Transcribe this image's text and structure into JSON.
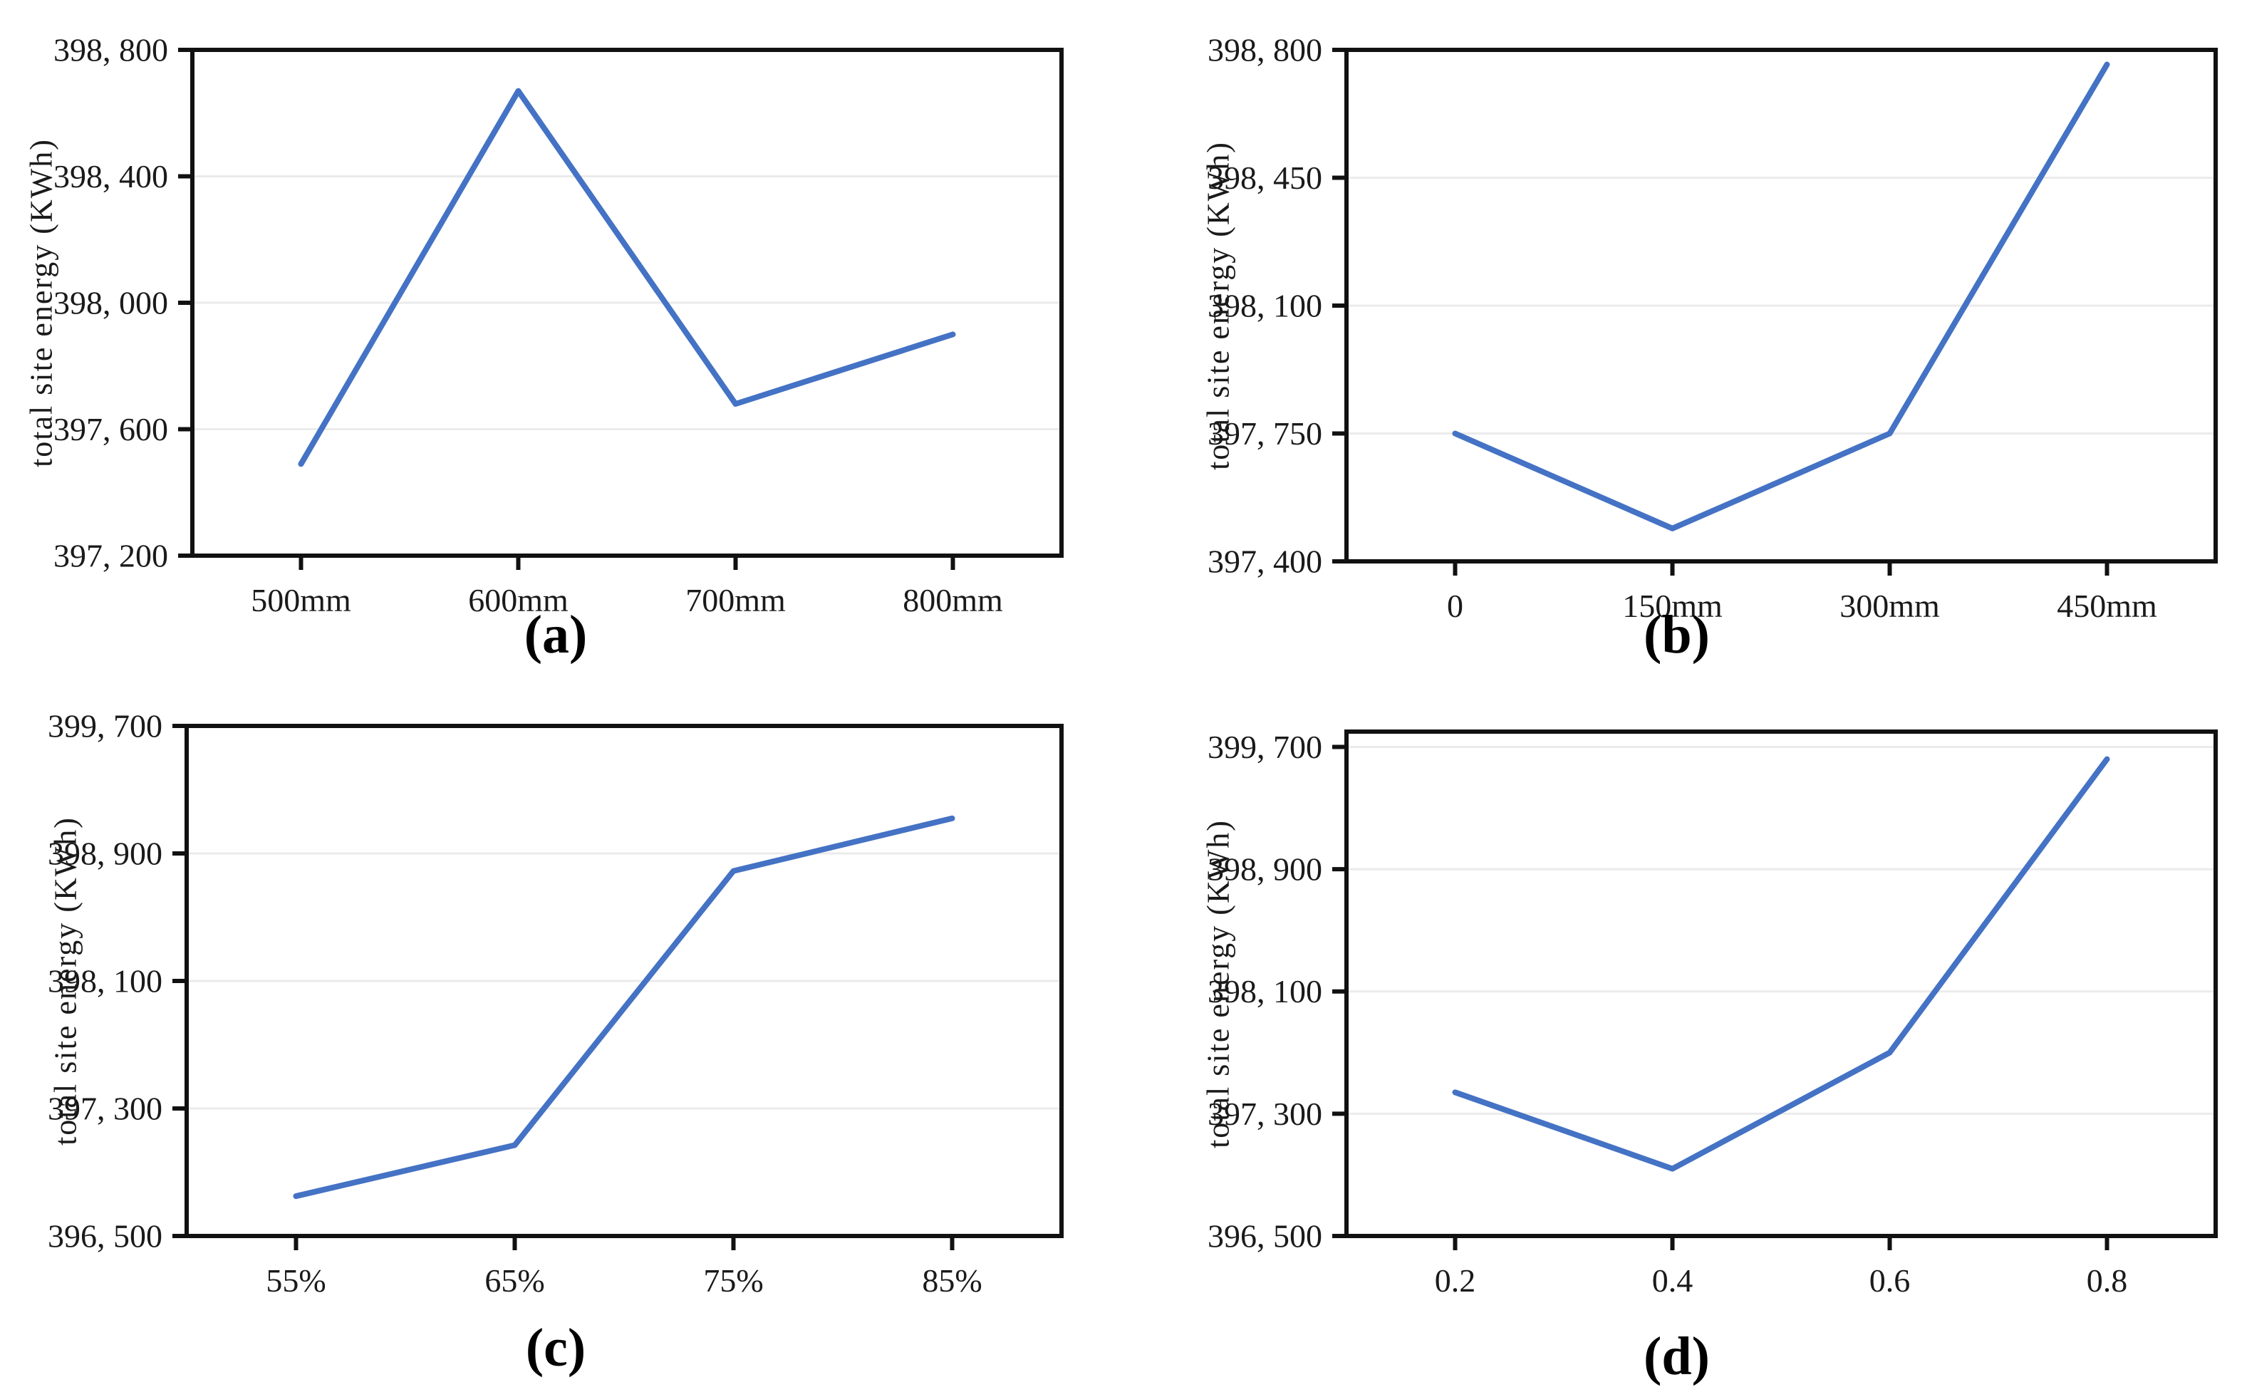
{
  "figure": {
    "description": "Four-panel line chart figure of total site energy sensitivity",
    "ylabel": "total site energy (KWh)"
  },
  "style": {
    "line_color": "#4472C4",
    "axis_color": "#111111",
    "grid_color": "#ebebeb",
    "text_color": "#1a1a1a",
    "background": "#ffffff"
  },
  "chart_data": [
    {
      "type": "line",
      "panel_label": "(a)",
      "ylabel": "total site energy (KWh)",
      "xlabel": "",
      "categories": [
        "500mm",
        "600mm",
        "700mm",
        "800mm"
      ],
      "values": [
        397490,
        398670,
        397680,
        397900
      ],
      "ylim": [
        397200,
        398800
      ],
      "yticks": [
        397200,
        397600,
        398000,
        398400,
        398800
      ],
      "ytick_labels": [
        "397, 200",
        "397, 600",
        "398, 000",
        "398, 400",
        "398, 800"
      ],
      "grid": true,
      "legend": null
    },
    {
      "type": "line",
      "panel_label": "(b)",
      "ylabel": "total site energy (KWh)",
      "xlabel": "",
      "categories": [
        "0",
        "150mm",
        "300mm",
        "450mm"
      ],
      "values": [
        397750,
        397490,
        397750,
        398760
      ],
      "ylim": [
        397400,
        398800
      ],
      "yticks": [
        397400,
        397750,
        398100,
        398450,
        398800
      ],
      "ytick_labels": [
        "397, 400",
        "397, 750",
        "398, 100",
        "398, 450",
        "398, 800"
      ],
      "grid": true,
      "legend": null
    },
    {
      "type": "line",
      "panel_label": "(c)",
      "ylabel": "total site energy (KWh)",
      "xlabel": "",
      "categories": [
        "55%",
        "65%",
        "75%",
        "85%"
      ],
      "values": [
        396750,
        397070,
        398790,
        399120
      ],
      "ylim": [
        396500,
        399700
      ],
      "yticks": [
        396500,
        397300,
        398100,
        398900,
        399700
      ],
      "ytick_labels": [
        "396, 500",
        "397, 300",
        "398, 100",
        "398, 900",
        "399, 700"
      ],
      "grid": true,
      "legend": null
    },
    {
      "type": "line",
      "panel_label": "(d)",
      "ylabel": "total site energy (KWh)",
      "xlabel": "",
      "categories": [
        "0.2",
        "0.4",
        "0.6",
        "0.8"
      ],
      "values": [
        397440,
        396940,
        397700,
        399620
      ],
      "ylim": [
        396500,
        399800
      ],
      "yticks": [
        396500,
        397300,
        398100,
        398900,
        399700
      ],
      "ytick_labels": [
        "396, 500",
        "397, 300",
        "398, 100",
        "398, 900",
        "399, 700"
      ],
      "grid": true,
      "legend": null
    }
  ]
}
